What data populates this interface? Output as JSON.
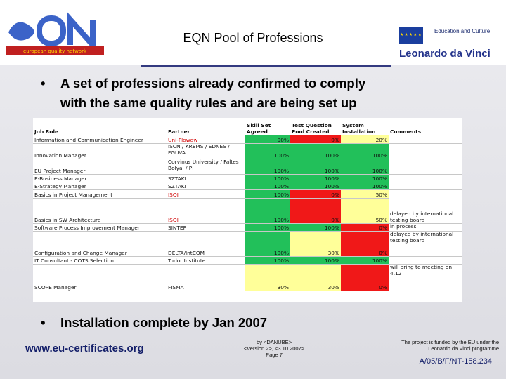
{
  "header": {
    "title": "EQN Pool of Professions",
    "logo_text": "european quality network",
    "edu_label": "Education and Culture",
    "ldv_label": "Leonardo da Vinci"
  },
  "bullets": [
    {
      "dot": "•",
      "text": "A set of professions already confirmed to comply"
    },
    {
      "dot": "",
      "text": "with the same quality rules and are being set up"
    }
  ],
  "bullet2": {
    "dot": "•",
    "text": "Installation complete by Jan 2007"
  },
  "table": {
    "headers": [
      "Job Role",
      "Partner",
      "Skill Set Agreed",
      "Test Question Pool Created",
      "System Installation",
      "Comments"
    ],
    "rows": [
      {
        "role": "Information and Communication Engineer",
        "partner": "Uni-Flowdw",
        "skill": "90%",
        "test": "0%",
        "sys": "20%",
        "comment": ""
      },
      {
        "role": "Innovation Manager",
        "partner": "ISCN / KREMS / EDNES / FGUVA",
        "skill": "100%",
        "test": "100%",
        "sys": "100%",
        "comment": ""
      },
      {
        "role": "EU Project Manager",
        "partner": "Corvinus University / Faltes Bolyai / PI",
        "skill": "100%",
        "test": "100%",
        "sys": "100%",
        "comment": ""
      },
      {
        "role": "E-Business Manager",
        "partner": "SZTAKI",
        "skill": "100%",
        "test": "100%",
        "sys": "100%",
        "comment": ""
      },
      {
        "role": "E-Strategy Manager",
        "partner": "SZTAKI",
        "skill": "100%",
        "test": "100%",
        "sys": "100%",
        "comment": ""
      },
      {
        "role": "Basics in Project Management",
        "partner": "ISQI",
        "skill": "100%",
        "test": "0%",
        "sys": "50%",
        "comment": "delayed by international testing board"
      },
      {
        "role": "Basics in SW Architecture",
        "partner": "ISQI",
        "skill": "100%",
        "test": "0%",
        "sys": "50%",
        "comment": ""
      },
      {
        "role": "Software Process Improvement Manager",
        "partner": "SINTEF",
        "skill": "100%",
        "test": "100%",
        "sys": "0%",
        "comment": "in process"
      },
      {
        "role": "Configuration and Change Manager",
        "partner": "DELTA/IntCOM",
        "skill": "100%",
        "test": "30%",
        "sys": "0%",
        "comment": "delayed by international testing board"
      },
      {
        "role": "IT Consultant - COTS Selection",
        "partner": "Tudor Institute",
        "skill": "100%",
        "test": "100%",
        "sys": "100%",
        "comment": ""
      },
      {
        "role": "SCOPE Manager",
        "partner": "FISMA",
        "skill": "30%",
        "test": "30%",
        "sys": "0%",
        "comment": "will bring to meeting on 4.12"
      }
    ]
  },
  "footer": {
    "url": "www.eu-certificates.org",
    "mid_line1": "by <DANUBE>",
    "mid_line2": "<Version 2>, <3.10.2007>",
    "mid_line3": "Page 7",
    "right_line1": "The project is funded by the EU under the",
    "right_line2": "Leonardo da Vinci programme",
    "code": "A/05/B/F/NT-158.234"
  },
  "colors": {
    "green": "#22c05a",
    "red": "#f01818",
    "yellow": "#ffff99",
    "navy": "#15206a"
  }
}
